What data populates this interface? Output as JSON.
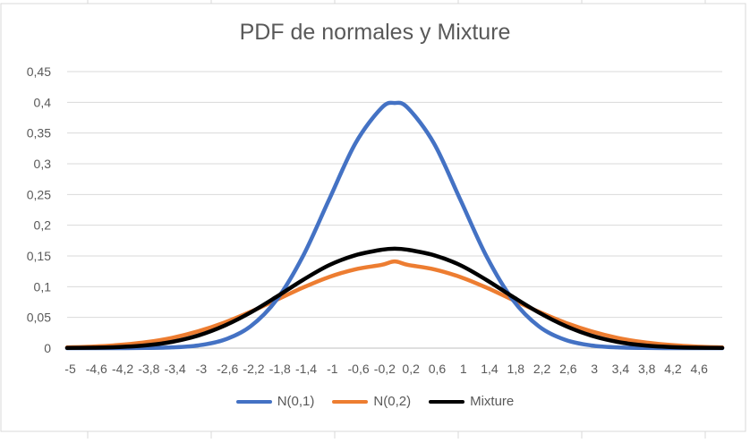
{
  "chart_data": {
    "type": "line",
    "title": "PDF de normales y Mixture",
    "xlabel": "",
    "ylabel": "",
    "xlim": [
      -5,
      5
    ],
    "ylim": [
      0,
      0.45
    ],
    "y_ticks": [
      0,
      0.05,
      0.1,
      0.15,
      0.2,
      0.25,
      0.3,
      0.35,
      0.4,
      0.45
    ],
    "y_tick_labels": [
      "0",
      "0,05",
      "0,1",
      "0,15",
      "0,2",
      "0,25",
      "0,3",
      "0,35",
      "0,4",
      "0,45"
    ],
    "x_tick_labels": [
      "-5",
      "-4,6",
      "-4,2",
      "-3,8",
      "-3,4",
      "-3",
      "-2,6",
      "-2,2",
      "-1,8",
      "-1,4",
      "-1",
      "-0,6",
      "-0,2",
      "0,2",
      "0,6",
      "1",
      "1,4",
      "1,8",
      "2,2",
      "2,6",
      "3",
      "3,4",
      "3,8",
      "4,2",
      "4,6"
    ],
    "grid": "horizontal",
    "legend": "bottom",
    "x": [
      -5.0,
      -4.6,
      -4.2,
      -3.8,
      -3.4,
      -3.0,
      -2.6,
      -2.2,
      -1.8,
      -1.4,
      -1.0,
      -0.6,
      -0.2,
      0.0,
      0.2,
      0.6,
      1.0,
      1.4,
      1.8,
      2.2,
      2.6,
      3.0,
      3.4,
      3.8,
      4.2,
      4.6,
      5.0
    ],
    "series": [
      {
        "name": "N(0,1)",
        "color": "#4472C4",
        "values": [
          1.5e-06,
          1e-05,
          6e-05,
          0.0003,
          0.0012,
          0.0044,
          0.0136,
          0.0355,
          0.079,
          0.1497,
          0.242,
          0.3332,
          0.391,
          0.3989,
          0.391,
          0.3332,
          0.242,
          0.1497,
          0.079,
          0.0355,
          0.0136,
          0.0044,
          0.0012,
          0.0003,
          6e-05,
          1e-05,
          1.5e-06
        ]
      },
      {
        "name": "N(0,2)",
        "color": "#ED7D31",
        "values": [
          0.0012,
          0.0026,
          0.0052,
          0.0096,
          0.0167,
          0.0274,
          0.0416,
          0.0592,
          0.0787,
          0.0985,
          0.1158,
          0.1283,
          0.1355,
          0.141,
          0.1355,
          0.1283,
          0.1158,
          0.0985,
          0.0787,
          0.0592,
          0.0416,
          0.0274,
          0.0167,
          0.0096,
          0.0052,
          0.0026,
          0.0012
        ]
      },
      {
        "name": "Mixture",
        "color": "#000000",
        "values": [
          0.0003,
          0.0007,
          0.0018,
          0.0045,
          0.0102,
          0.0205,
          0.0365,
          0.058,
          0.0838,
          0.111,
          0.1351,
          0.1512,
          0.1601,
          0.1619,
          0.1601,
          0.1512,
          0.1351,
          0.111,
          0.0838,
          0.058,
          0.0365,
          0.0205,
          0.0102,
          0.0045,
          0.0018,
          0.0007,
          0.0003
        ]
      }
    ]
  }
}
